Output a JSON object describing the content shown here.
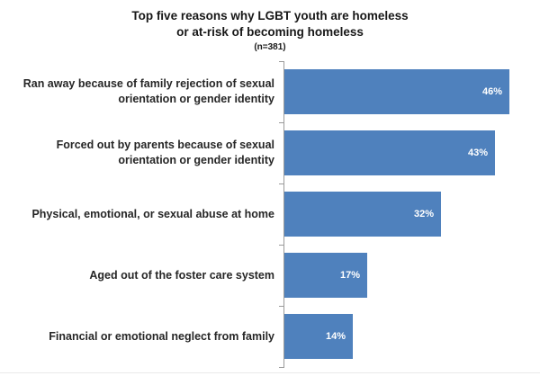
{
  "title": {
    "lines": [
      "Top five reasons why LGBT youth are homeless",
      "or at-risk of becoming homeless"
    ],
    "sample_size": "(n=381)"
  },
  "chart_data": {
    "type": "bar",
    "orientation": "horizontal",
    "title": "Top five reasons why LGBT youth are homeless or at-risk of becoming homeless",
    "subtitle": "(n=381)",
    "categories": [
      "Ran away because of family rejection of sexual orientation or gender identity",
      "Forced out by parents because of sexual orientation or gender identity",
      "Physical, emotional, or sexual abuse at home",
      "Aged out of the foster care system",
      "Financial or emotional neglect from family"
    ],
    "values": [
      46,
      43,
      32,
      17,
      14
    ],
    "value_labels": [
      "46%",
      "43%",
      "32%",
      "17%",
      "14%"
    ],
    "xlabel": "",
    "ylabel": "",
    "xlim": [
      0,
      50
    ],
    "grid": false,
    "legend": false,
    "bar_color": "#4F81BD",
    "value_label_color": "#FFFFFF",
    "axis_color": "#9A9A9A",
    "title_color": "#171717",
    "label_color": "#262626"
  }
}
